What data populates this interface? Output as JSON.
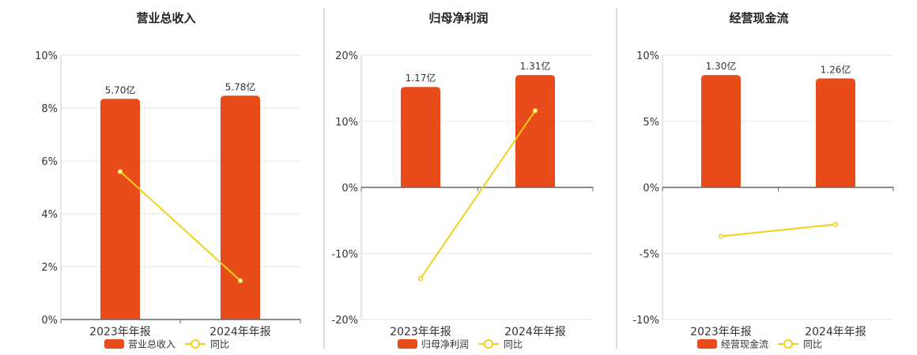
{
  "colors": {
    "bar": "#E84C1A",
    "line": "#F3D11A",
    "grid": "#e6e6e6",
    "axis": "#666666",
    "divider": "#bbbbbb",
    "text": "#333333"
  },
  "chart_data": [
    {
      "type": "bar",
      "title": "营业总收入",
      "categories": [
        "2023年年报",
        "2024年年报"
      ],
      "series": [
        {
          "name": "营业总收入",
          "type": "bar",
          "values": [
            8.35,
            8.47
          ],
          "labels": [
            "5.70亿",
            "5.78亿"
          ]
        },
        {
          "name": "同比",
          "type": "line",
          "values": [
            5.6,
            1.47
          ]
        }
      ],
      "ylim": [
        0,
        10
      ],
      "yticks": [
        "0%",
        "2%",
        "4%",
        "6%",
        "8%",
        "10%"
      ],
      "yticks_values": [
        0,
        2,
        4,
        6,
        8,
        10
      ],
      "grid": true,
      "legend": "bottom"
    },
    {
      "type": "bar",
      "title": "归母净利润",
      "categories": [
        "2023年年报",
        "2024年年报"
      ],
      "series": [
        {
          "name": "归母净利润",
          "type": "bar",
          "values": [
            15.2,
            17.0
          ],
          "labels": [
            "1.17亿",
            "1.31亿"
          ]
        },
        {
          "name": "同比",
          "type": "line",
          "values": [
            -13.8,
            11.6
          ]
        }
      ],
      "ylim": [
        -20,
        20
      ],
      "yticks": [
        "-20%",
        "-10%",
        "0%",
        "10%",
        "20%"
      ],
      "yticks_values": [
        -20,
        -10,
        0,
        10,
        20
      ],
      "grid": true,
      "legend": "bottom"
    },
    {
      "type": "bar",
      "title": "经营现金流",
      "categories": [
        "2023年年报",
        "2024年年报"
      ],
      "series": [
        {
          "name": "经营现金流",
          "type": "bar",
          "values": [
            8.5,
            8.25
          ],
          "labels": [
            "1.30亿",
            "1.26亿"
          ]
        },
        {
          "name": "同比",
          "type": "line",
          "values": [
            -3.7,
            -2.8
          ]
        }
      ],
      "ylim": [
        -10,
        10
      ],
      "yticks": [
        "-10%",
        "-5%",
        "0%",
        "5%",
        "10%"
      ],
      "yticks_values": [
        -10,
        -5,
        0,
        5,
        10
      ],
      "grid": true,
      "legend": "bottom"
    }
  ]
}
